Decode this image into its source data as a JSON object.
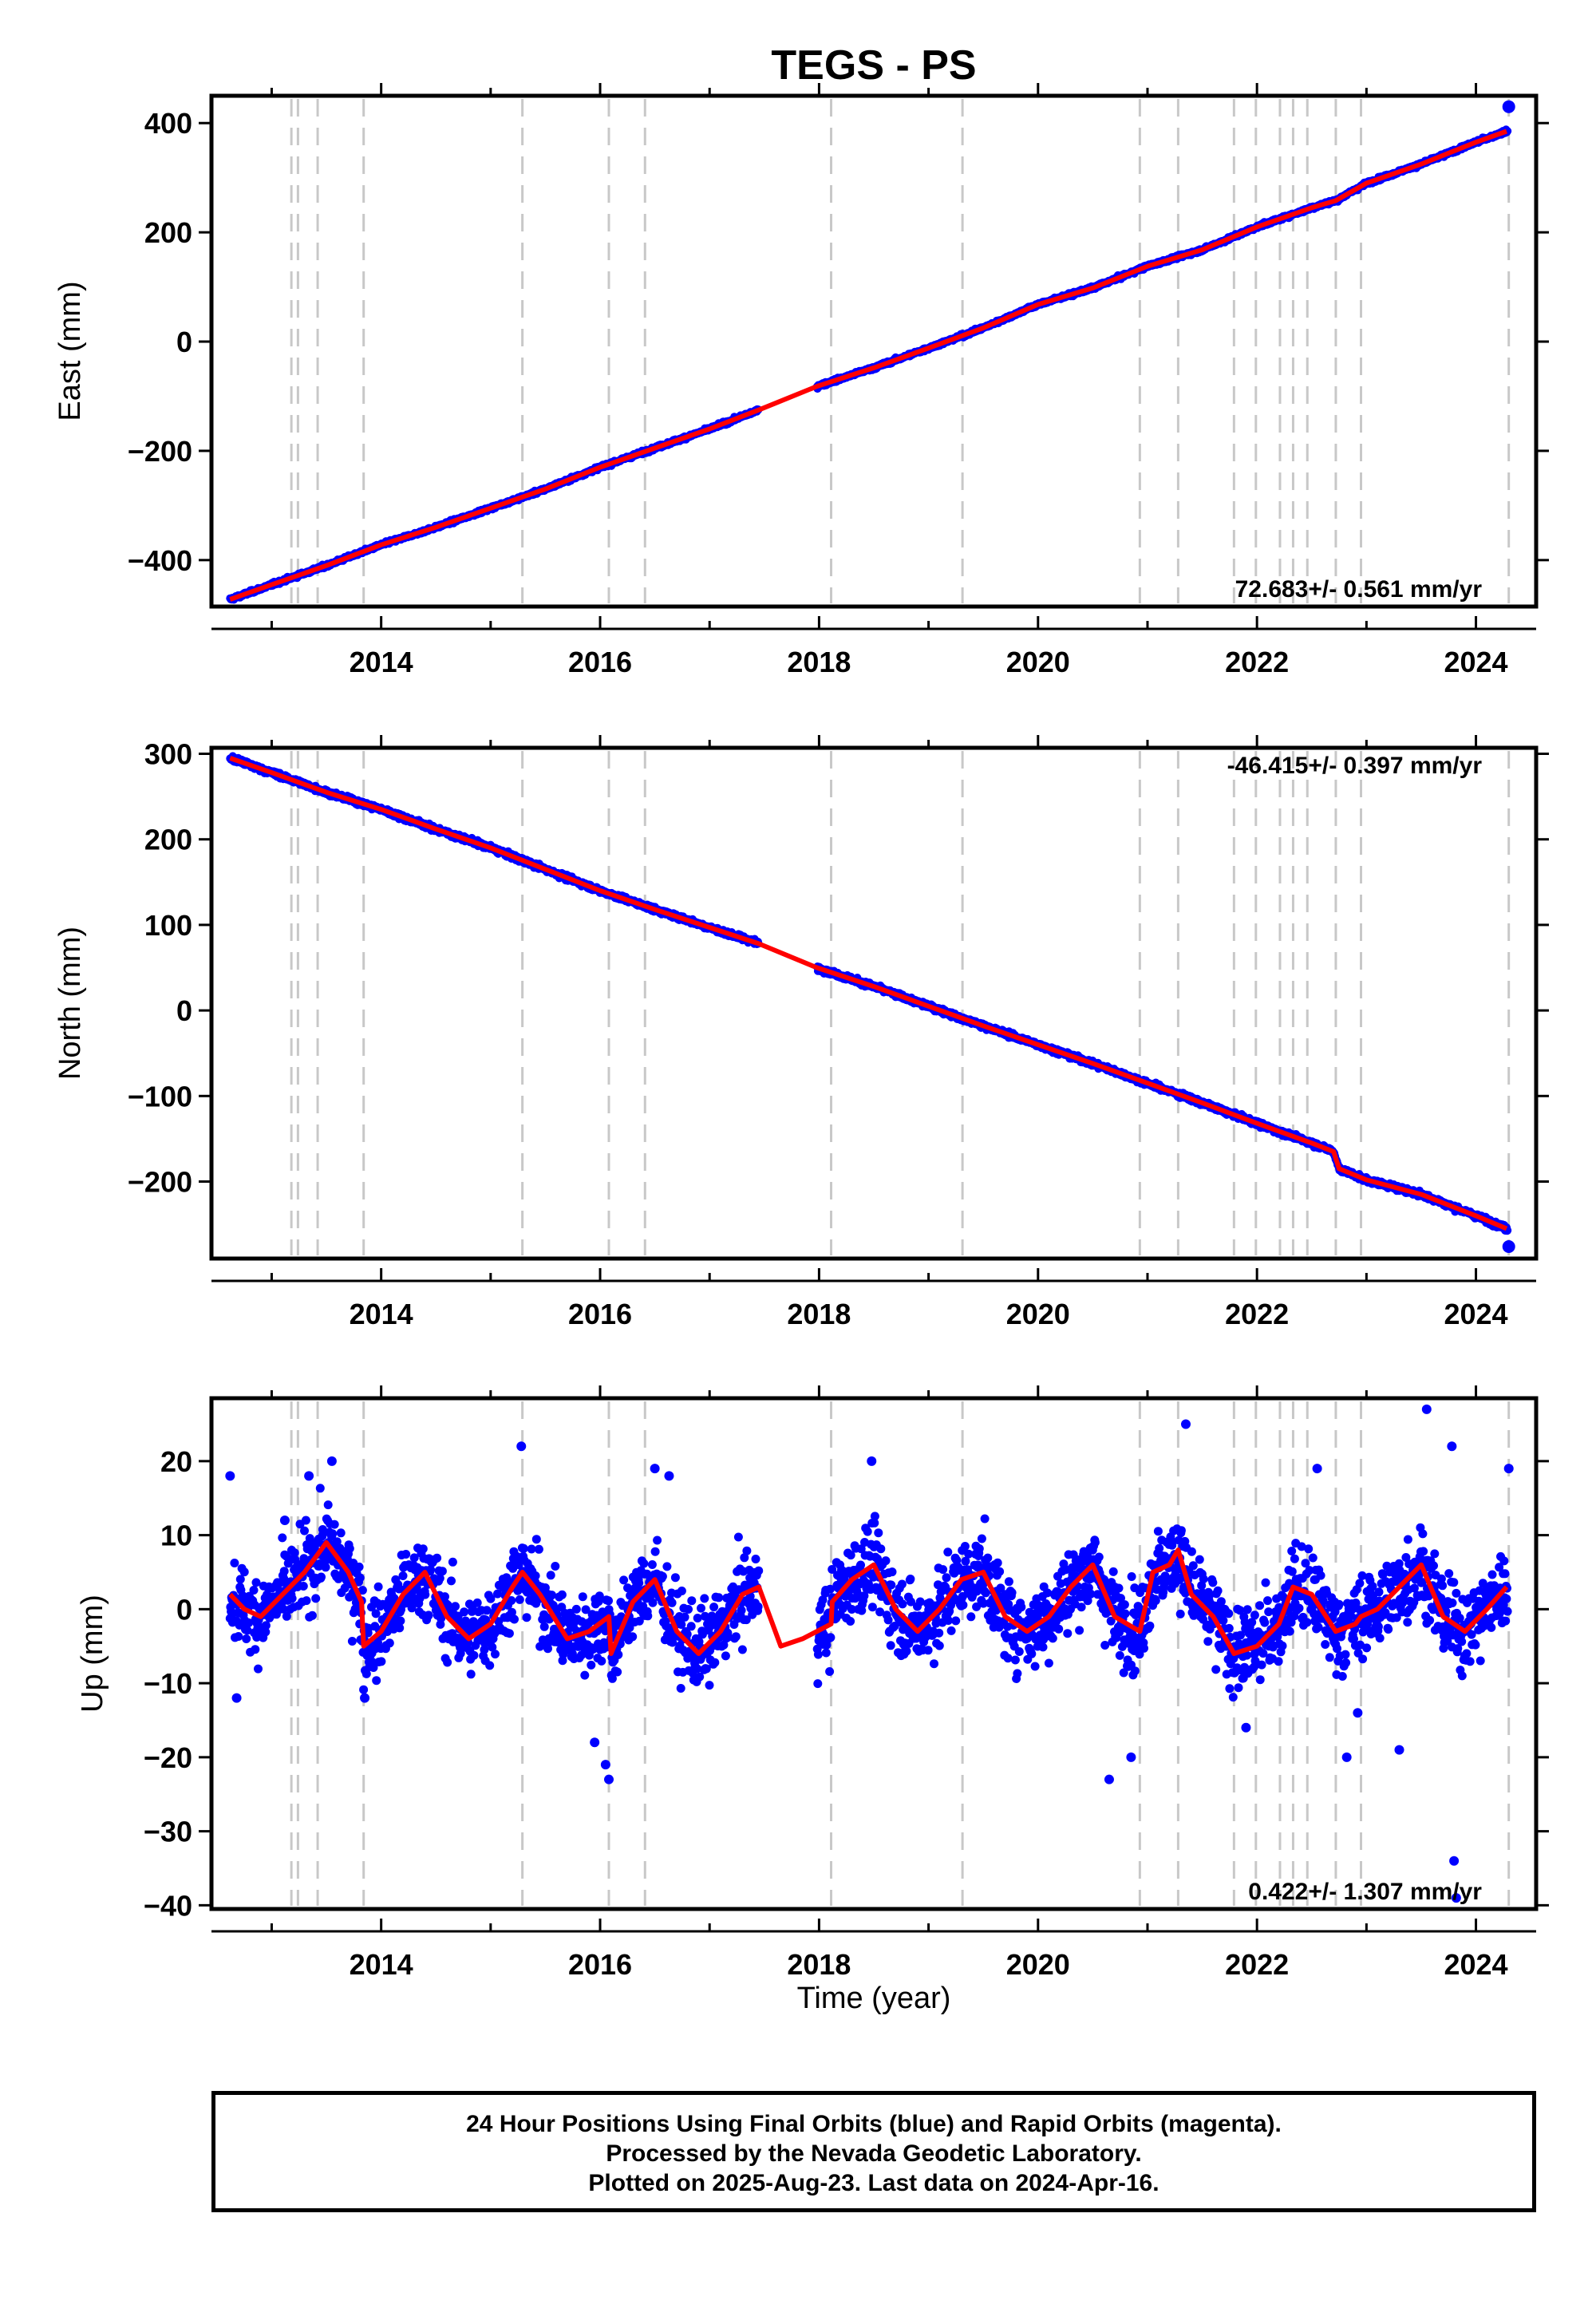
{
  "chart_data": {
    "title": "TEGS - PS",
    "type": "scatter",
    "xlabel": "Time (year)",
    "xlim": [
      2012.45,
      2024.55
    ],
    "x_ticks": [
      2014,
      2016,
      2018,
      2020,
      2022,
      2024
    ],
    "offset_epochs": [
      2013.18,
      2013.24,
      2013.42,
      2013.84,
      2015.29,
      2016.08,
      2016.41,
      2018.11,
      2019.31,
      2020.93,
      2021.28,
      2021.79,
      2021.99,
      2022.21,
      2022.33,
      2022.46,
      2022.72,
      2022.95,
      2024.3
    ],
    "data_gap": [
      2017.45,
      2017.98
    ],
    "legend": {
      "line1": "24 Hour Positions Using Final Orbits (blue) and Rapid Orbits (magenta).",
      "line2": "Processed by the Nevada Geodetic Laboratory.",
      "line3": "Plotted on 2025-Aug-23. Last data on 2024-Apr-16."
    },
    "colors": {
      "final_orbits": "#0000ff",
      "model": "#ff0000",
      "offsets": "#c8c8c8"
    },
    "panels": [
      {
        "name": "east",
        "ylabel": "East (mm)",
        "ylim": [
          -485,
          450
        ],
        "y_ticks": [
          -400,
          -200,
          0,
          200,
          400
        ],
        "rate_label": "72.683+/- 0.561 mm/yr",
        "rate_position": "bottom-right",
        "series": [
          {
            "type": "line",
            "x": [
              2012.62,
              2013.0,
              2013.5,
              2014.0,
              2014.5,
              2015.0,
              2015.5,
              2016.0,
              2016.5,
              2017.0,
              2017.45,
              2017.98,
              2018.5,
              2019.0,
              2019.5,
              2020.0,
              2020.5,
              2021.0,
              2021.5,
              2022.0,
              2022.5,
              2022.72,
              2023.0,
              2023.5,
              2024.0,
              2024.28
            ],
            "y": [
              -472,
              -445,
              -410,
              -372,
              -340,
              -305,
              -270,
              -230,
              -195,
              -160,
              -125,
              -82,
              -48,
              -12,
              25,
              68,
              98,
              138,
              168,
              210,
              245,
              258,
              290,
              325,
              365,
              385
            ]
          },
          {
            "type": "scatter",
            "x": [
              2024.3
            ],
            "y": [
              430
            ]
          }
        ]
      },
      {
        "name": "north",
        "ylabel": "North (mm)",
        "ylim": [
          -290,
          307
        ],
        "y_ticks": [
          -200,
          -100,
          0,
          100,
          200,
          300
        ],
        "rate_label": "-46.415+/- 0.397 mm/yr",
        "rate_position": "top-right",
        "series": [
          {
            "type": "line",
            "x": [
              2012.62,
              2013.0,
              2013.5,
              2014.0,
              2014.5,
              2015.0,
              2015.5,
              2016.0,
              2016.5,
              2017.0,
              2017.45,
              2017.98,
              2018.5,
              2019.0,
              2019.5,
              2020.0,
              2020.5,
              2021.0,
              2021.5,
              2022.0,
              2022.5,
              2022.7,
              2022.75,
              2023.0,
              2023.5,
              2024.0,
              2024.28
            ],
            "y": [
              295,
              278,
              255,
              235,
              212,
              190,
              165,
              140,
              118,
              97,
              78,
              50,
              28,
              5,
              -18,
              -40,
              -62,
              -85,
              -108,
              -132,
              -155,
              -165,
              -185,
              -198,
              -215,
              -240,
              -255
            ]
          },
          {
            "type": "scatter",
            "x": [
              2024.3
            ],
            "y": [
              -276
            ]
          }
        ]
      },
      {
        "name": "up",
        "ylabel": "Up (mm)",
        "ylim": [
          -40.5,
          28.5
        ],
        "y_ticks": [
          -40,
          -30,
          -20,
          -10,
          0,
          10,
          20
        ],
        "rate_label": "0.422+/- 1.307 mm/yr",
        "rate_position": "bottom-right",
        "series": [
          {
            "type": "line",
            "x": [
              2012.62,
              2012.75,
              2012.9,
              2013.1,
              2013.3,
              2013.5,
              2013.7,
              2013.82,
              2013.84,
              2014.0,
              2014.2,
              2014.4,
              2014.6,
              2014.8,
              2015.0,
              2015.2,
              2015.29,
              2015.45,
              2015.7,
              2015.9,
              2016.08,
              2016.1,
              2016.3,
              2016.5,
              2016.7,
              2016.9,
              2017.1,
              2017.3,
              2017.45,
              2017.65,
              2017.85,
              2017.98,
              2018.11,
              2018.12,
              2018.3,
              2018.5,
              2018.7,
              2018.9,
              2019.1,
              2019.3,
              2019.5,
              2019.7,
              2019.9,
              2020.1,
              2020.3,
              2020.5,
              2020.7,
              2020.93,
              2021.05,
              2021.2,
              2021.28,
              2021.4,
              2021.6,
              2021.79,
              2022.0,
              2022.2,
              2022.33,
              2022.5,
              2022.72,
              2022.9,
              2022.95,
              2023.1,
              2023.3,
              2023.5,
              2023.7,
              2023.9,
              2024.1,
              2024.28
            ],
            "y": [
              2,
              0,
              -1,
              2,
              5,
              9,
              5,
              1,
              -5,
              -3,
              2,
              5,
              -1,
              -4,
              -2,
              3,
              5,
              2,
              -4,
              -3,
              -1,
              -6,
              1,
              4,
              -3,
              -6,
              -3,
              2,
              3,
              -5,
              -4,
              -3,
              -2,
              1,
              4,
              6,
              0,
              -3,
              0,
              4,
              5,
              -1,
              -3,
              -1,
              3,
              6,
              -1,
              -3,
              5,
              6,
              8,
              2,
              -1,
              -6,
              -5,
              -2,
              3,
              2,
              -3,
              -2,
              -1,
              0,
              3,
              6,
              -1,
              -3,
              0,
              3
            ]
          }
        ],
        "outliers": {
          "x": [
            2012.62,
            2012.68,
            2013.12,
            2013.34,
            2013.55,
            2013.85,
            2015.28,
            2015.95,
            2016.05,
            2016.08,
            2016.5,
            2016.63,
            2018.48,
            2020.65,
            2020.85,
            2021.35,
            2021.9,
            2022.55,
            2022.82,
            2022.92,
            2023.3,
            2023.55,
            2023.78,
            2023.8,
            2023.82,
            2024.3
          ],
          "y": [
            18,
            -12,
            12,
            18,
            20,
            -12,
            22,
            -18,
            -21,
            -23,
            19,
            18,
            20,
            -23,
            -20,
            25,
            -16,
            19,
            -20,
            -14,
            -19,
            27,
            22,
            -34,
            -39,
            19
          ]
        }
      }
    ]
  }
}
